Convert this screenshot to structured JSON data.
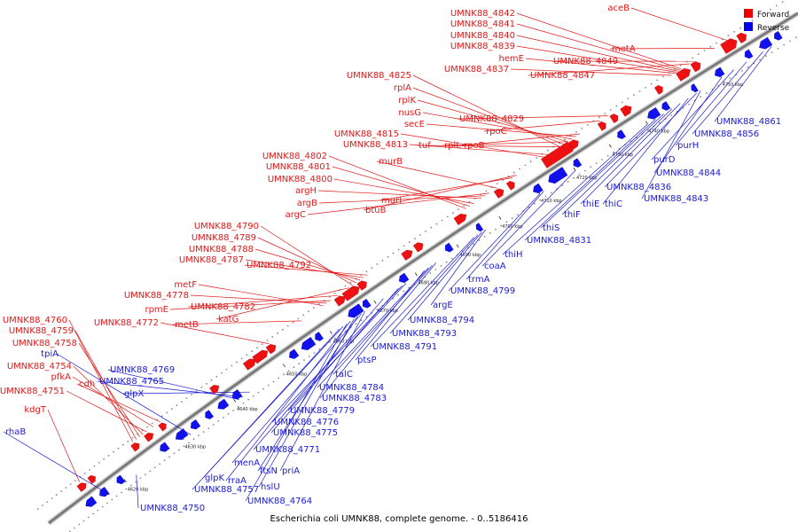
{
  "caption": "Escherichia coli UMNK88, complete genome. - 0..5186416",
  "legend": [
    {
      "label": "Forward",
      "color": "#ee0000"
    },
    {
      "label": "Reverse",
      "color": "#0000ee"
    }
  ],
  "ticks": [
    "4620 kbp",
    "4630 kbp",
    "4640 kbp",
    "4650 kbp",
    "4660 kbp",
    "4670 kbp",
    "4680 kbp",
    "4690 kbp",
    "4700 kbp",
    "4710 kbp",
    "4720 kbp",
    "4730 kbp",
    "4740 kbp",
    "4750 kbp"
  ],
  "forward_labels": [
    "aceB",
    "UMNK88_4842",
    "UMNK88_4841",
    "UMNK88_4840",
    "UMNK88_4839",
    "hemE",
    "UMNK88_4849",
    "metA",
    "UMNK88_4837",
    "UMNK88_4847",
    "UMNK88_4825",
    "rplA",
    "rplK",
    "nusG",
    "secE",
    "UMNK88_4815",
    "UMNK88_4813",
    "tuf",
    "rplL",
    "rpoB",
    "rpoC",
    "UMNK88_4829",
    "UMNK88_4802",
    "UMNK88_4801",
    "UMNK88_4800",
    "murB",
    "argH",
    "argB",
    "argC",
    "murI",
    "btuB",
    "UMNK88_4790",
    "UMNK88_4789",
    "UMNK88_4788",
    "UMNK88_4787",
    "UMNK88_4792",
    "metF",
    "UMNK88_4778",
    "rpmE",
    "UMNK88_4782",
    "katG",
    "UMNK88_4772",
    "metB",
    "UMNK88_4760",
    "UMNK88_4759",
    "UMNK88_4758",
    "UMNK88_4754",
    "pfkA",
    "cdh",
    "UMNK88_4751",
    "kdgT"
  ],
  "reverse_labels": [
    "UMNK88_4861",
    "UMNK88_4856",
    "purH",
    "purD",
    "UMNK88_4844",
    "UMNK88_4836",
    "UMNK88_4843",
    "thiC",
    "thiE",
    "thiF",
    "thiS",
    "UMNK88_4831",
    "thiH",
    "coaA",
    "trmA",
    "UMNK88_4799",
    "argE",
    "UMNK88_4794",
    "UMNK88_4793",
    "UMNK88_4791",
    "ptsP",
    "talC",
    "UMNK88_4784",
    "UMNK88_4783",
    "UMNK88_4779",
    "UMNK88_4776",
    "UMNK88_4775",
    "UMNK88_4771",
    "tpiA",
    "UMNK88_4769",
    "UMNK88_4765",
    "glpX",
    "menA",
    "ftsN",
    "priA",
    "rraA",
    "hslU",
    "glpK",
    "UMNK88_4757",
    "UMNK88_4764",
    "rhaB",
    "UMNK88_4750"
  ]
}
